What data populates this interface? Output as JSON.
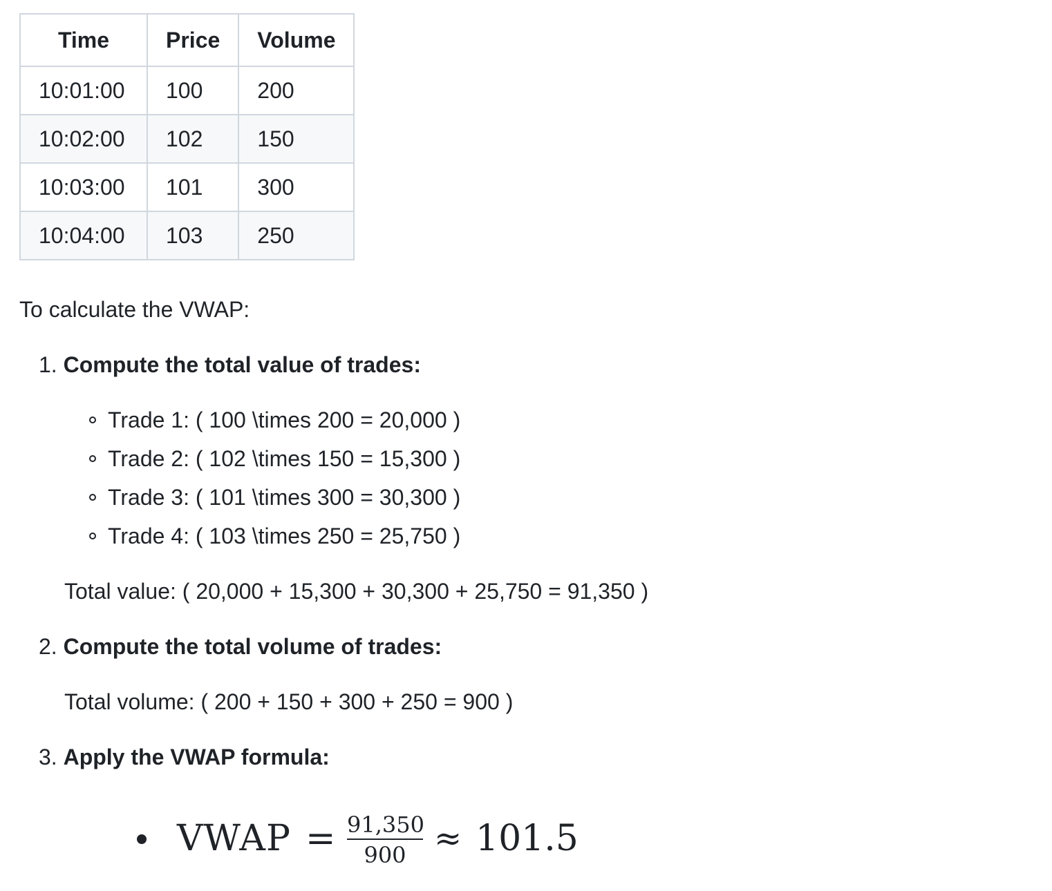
{
  "table": {
    "headers": [
      "Time",
      "Price",
      "Volume"
    ],
    "rows": [
      [
        "10:01:00",
        "100",
        "200"
      ],
      [
        "10:02:00",
        "102",
        "150"
      ],
      [
        "10:03:00",
        "101",
        "300"
      ],
      [
        "10:04:00",
        "103",
        "250"
      ]
    ]
  },
  "intro": "To calculate the VWAP:",
  "steps": [
    {
      "number": "1.",
      "title": "Compute the total value of trades:",
      "items": [
        "Trade 1: ( 100 \\times 200 = 20,000 )",
        "Trade 2: ( 102 \\times 150 = 15,300 )",
        "Trade 3: ( 101 \\times 300 = 30,300 )",
        "Trade 4: ( 103 \\times 250 = 25,750 )"
      ],
      "summary": "Total value: ( 20,000 + 15,300 + 30,300 + 25,750 = 91,350 )"
    },
    {
      "number": "2.",
      "title": "Compute the total volume of trades:",
      "summary": "Total volume: ( 200 + 150 + 300 + 250 = 900 )"
    },
    {
      "number": "3.",
      "title": "Apply the VWAP formula:"
    }
  ],
  "formula": {
    "lhs": "VWAP",
    "equals": "=",
    "numerator": "91,350",
    "denominator": "900",
    "approx": "≈",
    "result": "101.5"
  }
}
